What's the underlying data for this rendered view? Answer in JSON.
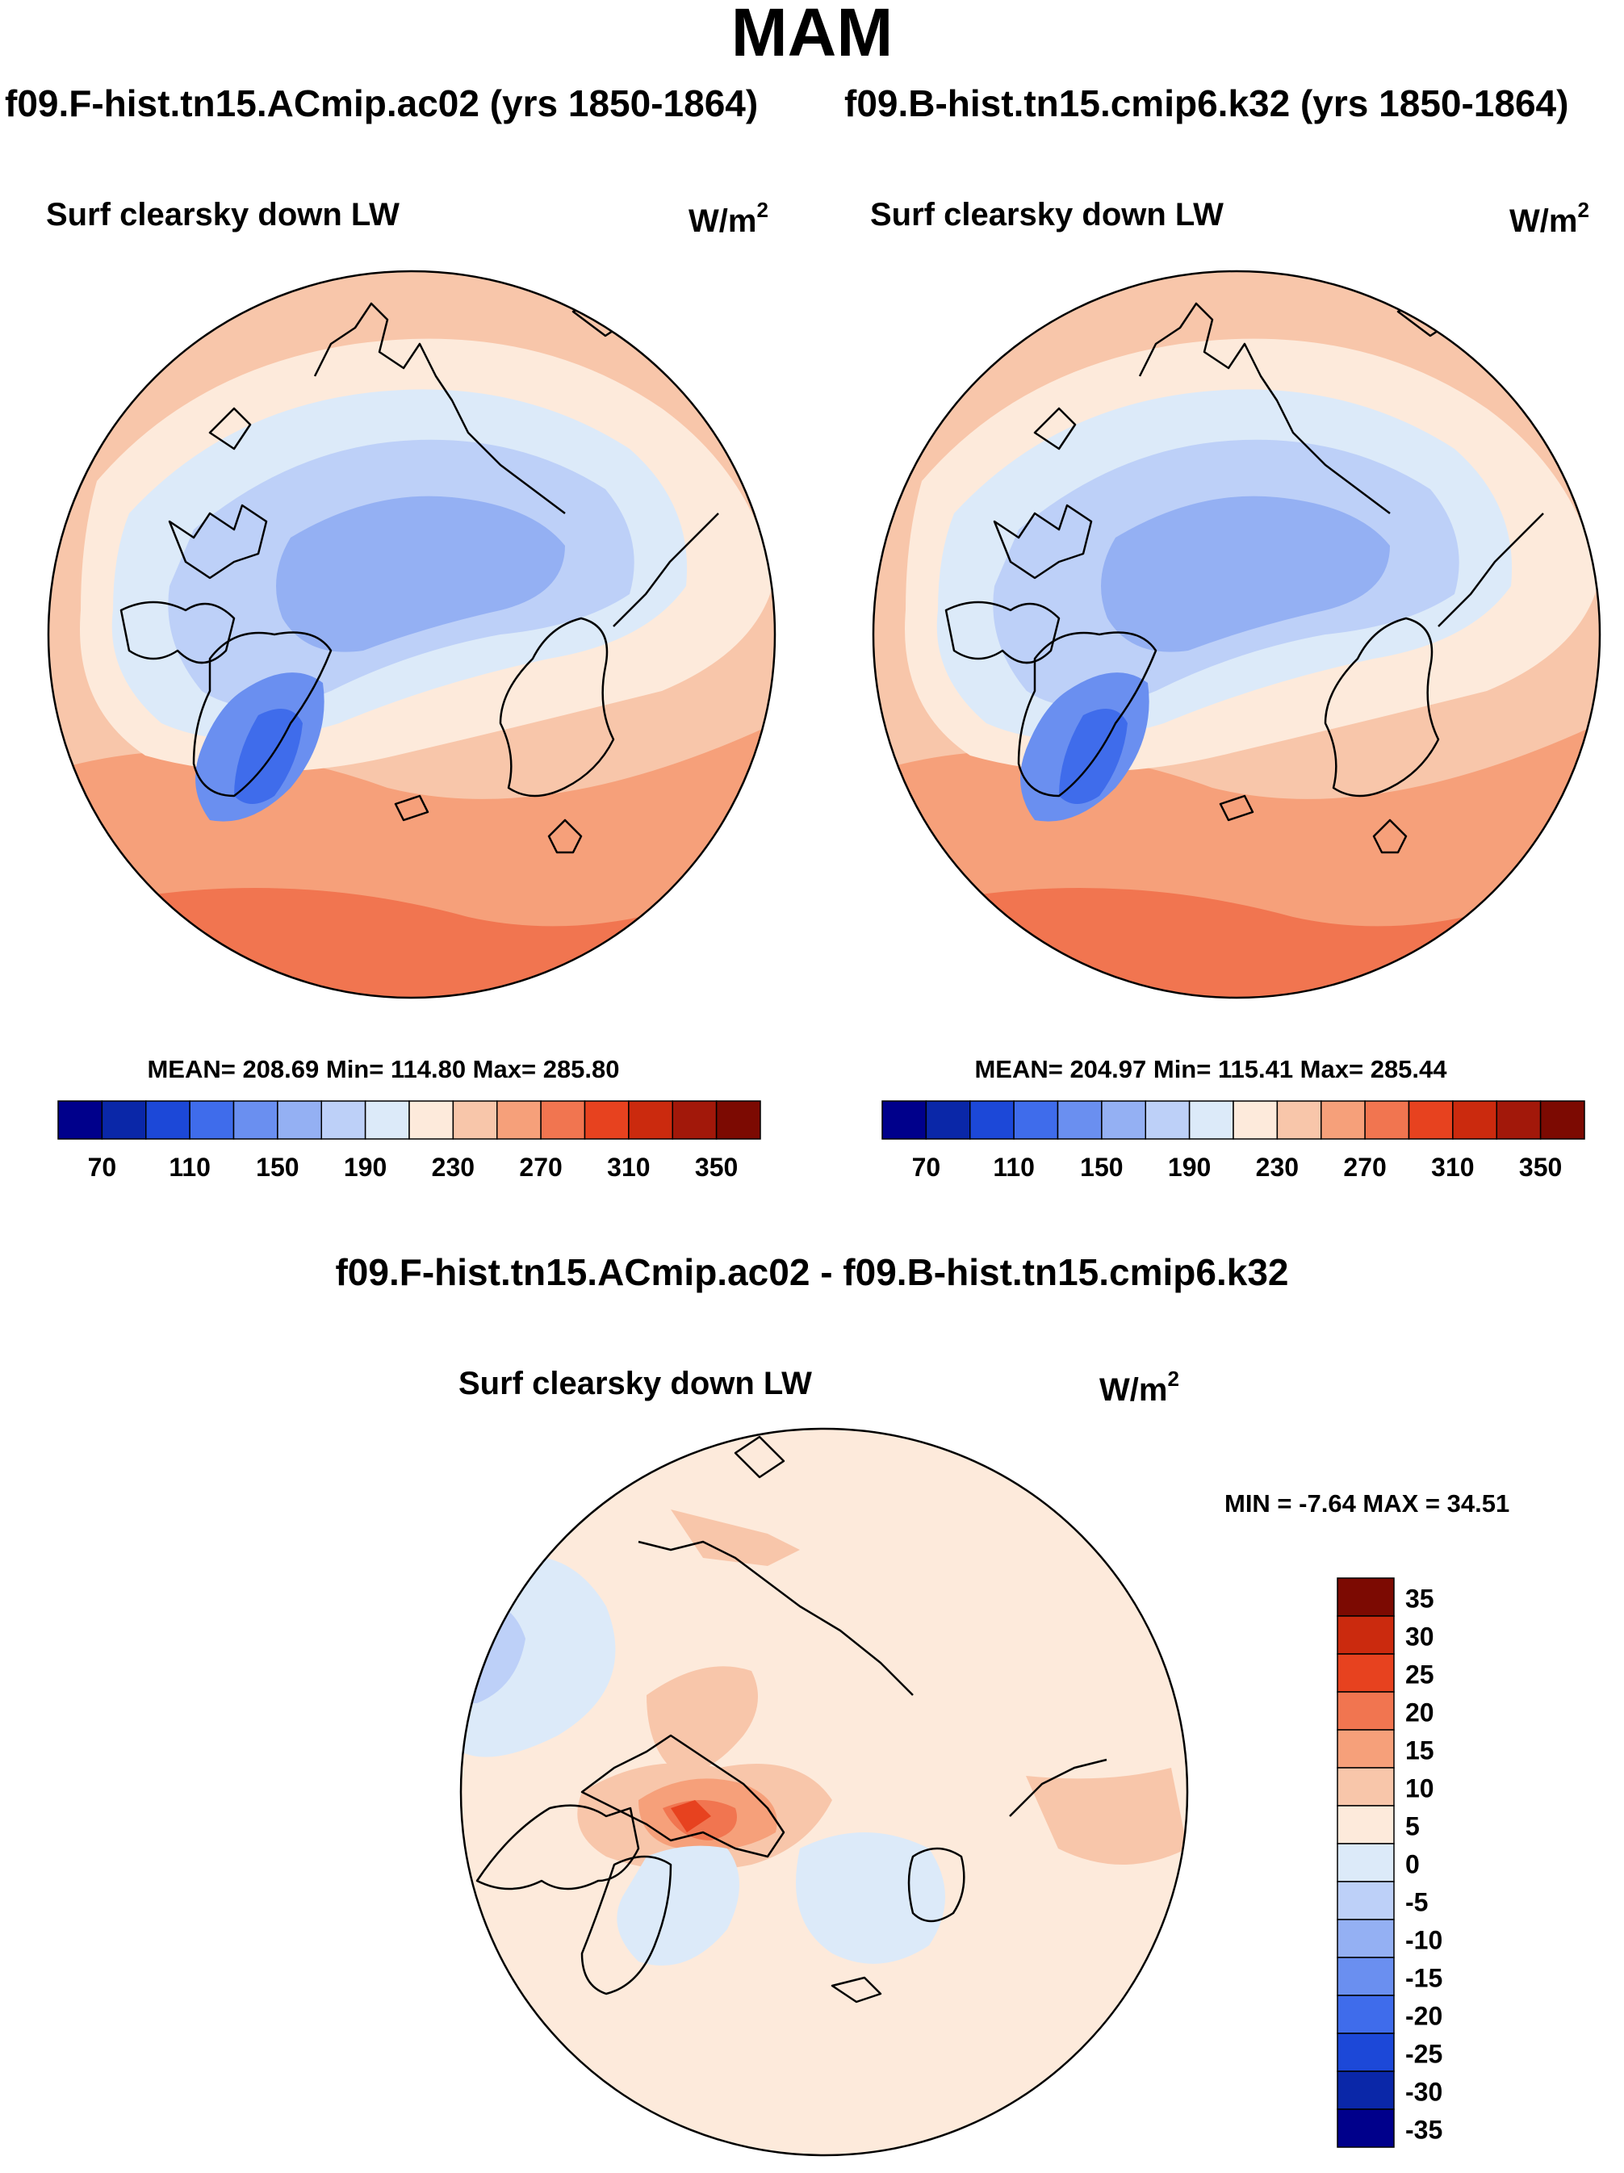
{
  "main_title": "MAM",
  "panels": [
    {
      "case": "f09.F-hist.tn15.ACmip.ac02 (yrs 1850-1864)",
      "subtitle": "Surf clearsky down LW",
      "units": "W/m",
      "units_exp": "2",
      "stats": "MEAN= 208.69  Min= 114.80  Max= 285.80"
    },
    {
      "case": "f09.B-hist.tn15.cmip6.k32 (yrs 1850-1864)",
      "subtitle": "Surf clearsky down LW",
      "units": "W/m",
      "units_exp": "2",
      "stats": "MEAN= 204.97  Min= 115.41  Max= 285.44"
    }
  ],
  "difference": {
    "title": "f09.F-hist.tn15.ACmip.ac02 - f09.B-hist.tn15.cmip6.k32",
    "subtitle": "Surf clearsky down LW",
    "units": "W/m",
    "units_exp": "2",
    "stats": "MIN =  -7.64 MAX =  34.51"
  },
  "colors": {
    "abs_bar": [
      "#00008b",
      "#0a27a8",
      "#1c48d8",
      "#3f6ceb",
      "#6a8ff0",
      "#94b0f3",
      "#bdd0f8",
      "#dceaf9",
      "#fdeadb",
      "#f8c6aa",
      "#f6a07a",
      "#f17550",
      "#e7421f",
      "#cb2a0e",
      "#a2180a",
      "#7c0a02"
    ],
    "diff_bar": [
      "#00008b",
      "#0a27a8",
      "#1c48d8",
      "#3f6ceb",
      "#6a8ff0",
      "#94b0f3",
      "#bdd0f8",
      "#dceaf9",
      "#fdeadb",
      "#f8c6aa",
      "#f6a07a",
      "#f17550",
      "#e7421f",
      "#cb2a0e",
      "#7c0a02"
    ]
  },
  "chart_data": [
    {
      "type": "heatmap",
      "title": "Surf clearsky down LW",
      "projection": "north polar stereographic",
      "colorbar_labels": [
        "70",
        "110",
        "150",
        "190",
        "230",
        "270",
        "310",
        "350"
      ],
      "colorbar_levels": [
        60,
        70,
        80,
        90,
        100,
        110,
        120,
        130,
        140,
        150,
        160,
        170,
        180,
        190,
        200,
        210,
        220,
        230,
        240,
        250,
        260,
        270,
        280,
        290,
        300,
        310,
        320,
        330,
        340,
        350,
        360
      ],
      "mean": 208.69,
      "min": 114.8,
      "max": 285.8
    },
    {
      "type": "heatmap",
      "title": "Surf clearsky down LW",
      "projection": "north polar stereographic",
      "colorbar_labels": [
        "70",
        "110",
        "150",
        "190",
        "230",
        "270",
        "310",
        "350"
      ],
      "mean": 204.97,
      "min": 115.41,
      "max": 285.44
    },
    {
      "type": "heatmap",
      "title": "Surf clearsky down LW",
      "projection": "north polar stereographic",
      "colorbar_labels": [
        "35",
        "30",
        "25",
        "20",
        "15",
        "10",
        "5",
        "0",
        "-5",
        "-10",
        "-15",
        "-20",
        "-25",
        "-30",
        "-35"
      ],
      "min": -7.64,
      "max": 34.51
    }
  ]
}
